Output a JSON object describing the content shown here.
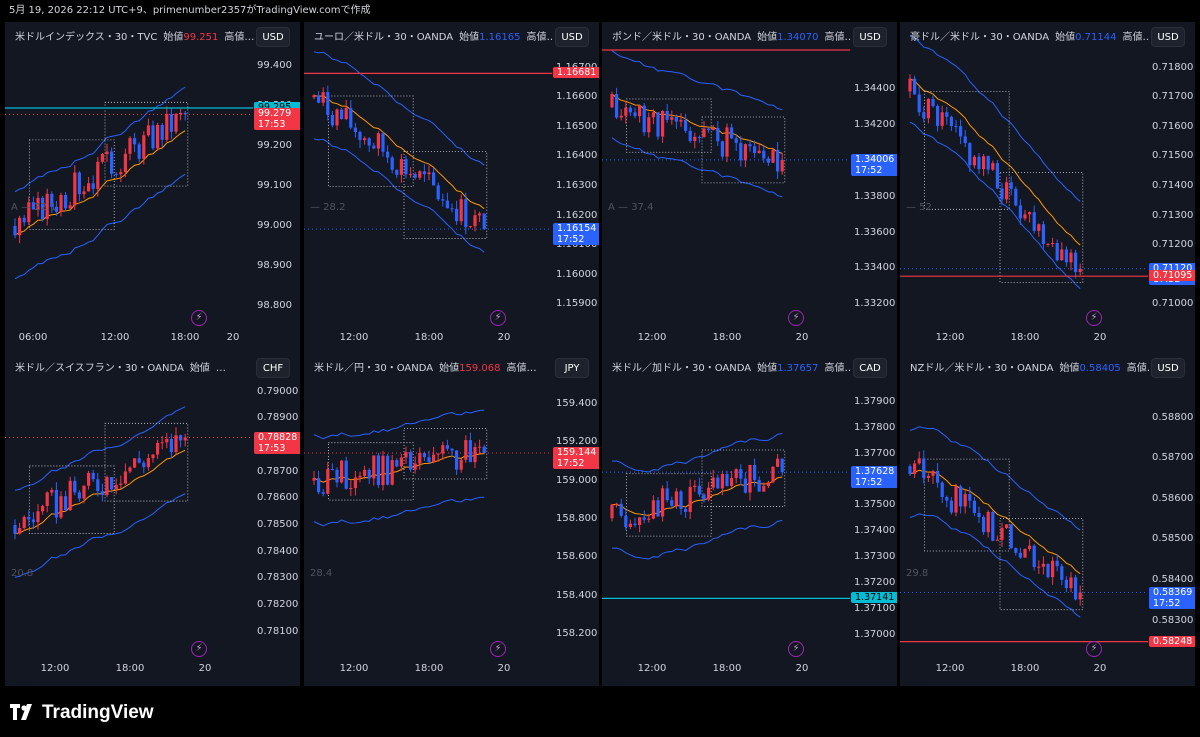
{
  "header": {
    "snapshot_text": "5月 19, 2026 22:12 UTC+9、primenumber2357がTradingView.comで作成"
  },
  "brand": {
    "name": "TradingView",
    "logo_icon": "tradingview-logo-icon"
  },
  "colors": {
    "up": "#f23645",
    "down": "#2962ff",
    "bg": "#131722",
    "ema": "#ff9800",
    "band": "#2962ff"
  },
  "panels": [
    {
      "title_symbol": "米ドルインデックス・30・TVC",
      "title_open_label": "始値",
      "title_open": "99.251",
      "title_open_color": "#f23645",
      "title_more": "高値…",
      "currency": "USD",
      "price_ticks": [
        "99.400",
        "99.300",
        "99.200",
        "99.100",
        "99.000",
        "98.900",
        "98.800"
      ],
      "time_ticks": [
        "06:00",
        "12:00",
        "18:00",
        "20"
      ],
      "indicator_label": "A — 22.1",
      "labels": [
        {
          "price": "99.295",
          "time": "",
          "color": "#00bcd4",
          "text_color": "#000"
        },
        {
          "price": "99.279",
          "time": "17:53",
          "color": "#f23645",
          "text_color": "#fff"
        }
      ],
      "chart_data": {
        "type": "candlestick",
        "ylim": [
          98.76,
          99.44
        ],
        "last": 99.279
      },
      "seed": 3,
      "start": 99.0,
      "end": 99.279,
      "trend": "up",
      "lines": [
        {
          "price": 99.295,
          "color": "#00bcd4",
          "style": "solid"
        },
        {
          "price": 99.279,
          "color": "#f23645",
          "style": "dotted"
        }
      ]
    },
    {
      "title_symbol": "ユーロ／米ドル・30・OANDA",
      "title_open_label": "始値",
      "title_open": "1.16165",
      "title_open_color": "#2962ff",
      "title_more": "高値…",
      "currency": "USD",
      "price_ticks": [
        "1.16700",
        "1.16600",
        "1.16500",
        "1.16400",
        "1.16300",
        "1.16200",
        "1.16100",
        "1.16000",
        "1.15900"
      ],
      "time_ticks": [
        "12:00",
        "18:00",
        "20"
      ],
      "indicator_label": "— 28.2",
      "labels": [
        {
          "price": "1.16681",
          "time": "",
          "color": "#f23645",
          "text_color": "#fff"
        },
        {
          "price": "1.16154",
          "time": "17:52",
          "color": "#2962ff",
          "text_color": "#fff"
        }
      ],
      "chart_data": {
        "type": "candlestick",
        "ylim": [
          1.1584,
          1.1676
        ],
        "last": 1.16154
      },
      "seed": 7,
      "start": 1.166,
      "end": 1.16154,
      "trend": "down",
      "lines": [
        {
          "price": 1.16681,
          "color": "#f23645",
          "style": "solid"
        },
        {
          "price": 1.16154,
          "color": "#2962ff",
          "style": "dotted"
        }
      ]
    },
    {
      "title_symbol": "ポンド／米ドル・30・OANDA",
      "title_open_label": "始値",
      "title_open": "1.34070",
      "title_open_color": "#2962ff",
      "title_more": "高値…",
      "currency": "USD",
      "price_ticks": [
        "1.34400",
        "1.34200",
        "1.34000",
        "1.33800",
        "1.33600",
        "1.33400",
        "1.33200"
      ],
      "time_ticks": [
        "12:00",
        "18:00",
        "20"
      ],
      "indicator_label": "A — 37.4",
      "labels": [
        {
          "price": "1.34006",
          "time": "17:52",
          "color": "#2962ff",
          "text_color": "#fff"
        }
      ],
      "chart_data": {
        "type": "candlestick",
        "ylim": [
          1.331,
          1.3462
        ],
        "last": 1.34006
      },
      "seed": 11,
      "start": 1.343,
      "end": 1.34006,
      "trend": "flat",
      "lines": [
        {
          "price": 1.3462,
          "color": "#f23645",
          "style": "solid"
        },
        {
          "price": 1.34006,
          "color": "#2962ff",
          "style": "dotted"
        }
      ]
    },
    {
      "title_symbol": "豪ドル／米ドル・30・OANDA",
      "title_open_label": "始値",
      "title_open": "0.71144",
      "title_open_color": "#2962ff",
      "title_more": "高値…",
      "currency": "USD",
      "price_ticks": [
        "0.71800",
        "0.71700",
        "0.71600",
        "0.71500",
        "0.71400",
        "0.71300",
        "0.71200",
        "0.71100",
        "0.71000"
      ],
      "time_ticks": [
        "12:00",
        "18:00",
        "20"
      ],
      "indicator_label": "— 52",
      "labels": [
        {
          "price": "0.71120",
          "time": "17:52",
          "color": "#2962ff",
          "text_color": "#fff"
        },
        {
          "price": "0.71095",
          "time": "",
          "color": "#f23645",
          "text_color": "#fff"
        }
      ],
      "chart_data": {
        "type": "candlestick",
        "ylim": [
          0.7094,
          0.7186
        ],
        "last": 0.7112
      },
      "seed": 5,
      "start": 0.7172,
      "end": 0.7112,
      "trend": "down",
      "lines": [
        {
          "price": 0.71095,
          "color": "#f23645",
          "style": "solid"
        },
        {
          "price": 0.7112,
          "color": "#2962ff",
          "style": "dotted"
        }
      ]
    },
    {
      "title_symbol": "米ドル／スイスフラン・30・OANDA",
      "title_open_label": "始値",
      "title_open": "",
      "title_open_color": "#d1d4dc",
      "title_more": "…",
      "currency": "CHF",
      "price_ticks": [
        "0.79000",
        "0.78900",
        "0.78800",
        "0.78700",
        "0.78600",
        "0.78500",
        "0.78400",
        "0.78300",
        "0.78200",
        "0.78100"
      ],
      "time_ticks": [
        "12:00",
        "18:00",
        "20"
      ],
      "indicator_label": "20.8",
      "labels": [
        {
          "price": "0.78828",
          "time": "17:53",
          "color": "#f23645",
          "text_color": "#fff"
        }
      ],
      "chart_data": {
        "type": "candlestick",
        "ylim": [
          0.7802,
          0.7904
        ],
        "last": 0.78828
      },
      "seed": 9,
      "start": 0.785,
      "end": 0.78828,
      "trend": "up",
      "lines": [
        {
          "price": 0.78828,
          "color": "#f23645",
          "style": "dotted"
        }
      ]
    },
    {
      "title_symbol": "米ドル／円・30・OANDA",
      "title_open_label": "始値",
      "title_open": "159.068",
      "title_open_color": "#f23645",
      "title_more": "高値…",
      "currency": "JPY",
      "price_ticks": [
        "159.400",
        "159.200",
        "159.000",
        "158.800",
        "158.600",
        "158.400",
        "158.200"
      ],
      "time_ticks": [
        "12:00",
        "18:00",
        "20"
      ],
      "indicator_label": "28.4",
      "labels": [
        {
          "price": "159.144",
          "time": "17:52",
          "color": "#f23645",
          "text_color": "#fff"
        }
      ],
      "chart_data": {
        "type": "candlestick",
        "ylim": [
          158.1,
          159.52
        ],
        "last": 159.144
      },
      "seed": 13,
      "start": 159.0,
      "end": 159.144,
      "trend": "up-slight",
      "lines": [
        {
          "price": 159.144,
          "color": "#f23645",
          "style": "dotted"
        }
      ]
    },
    {
      "title_symbol": "米ドル／加ドル・30・OANDA",
      "title_open_label": "始値",
      "title_open": "1.37657",
      "title_open_color": "#2962ff",
      "title_more": "高値…",
      "currency": "CAD",
      "price_ticks": [
        "1.37900",
        "1.37800",
        "1.37700",
        "1.37600",
        "1.37500",
        "1.37400",
        "1.37300",
        "1.37200",
        "1.37100",
        "1.37000"
      ],
      "time_ticks": [
        "12:00",
        "18:00",
        "20"
      ],
      "indicator_label": "",
      "labels": [
        {
          "price": "1.37628",
          "time": "17:52",
          "color": "#2962ff",
          "text_color": "#fff"
        },
        {
          "price": "1.37141",
          "time": "",
          "color": "#00bcd4",
          "text_color": "#000"
        }
      ],
      "chart_data": {
        "type": "candlestick",
        "ylim": [
          1.3693,
          1.3798
        ],
        "last": 1.37628
      },
      "seed": 17,
      "start": 1.3745,
      "end": 1.37628,
      "trend": "up",
      "lines": [
        {
          "price": 1.37141,
          "color": "#00bcd4",
          "style": "solid"
        },
        {
          "price": 1.37628,
          "color": "#2962ff",
          "style": "dotted"
        }
      ]
    },
    {
      "title_symbol": "NZドル／米ドル・30・OANDA",
      "title_open_label": "始値",
      "title_open": "0.58405",
      "title_open_color": "#2962ff",
      "title_more": "高値…",
      "currency": "USD",
      "price_ticks": [
        "0.58800",
        "0.58700",
        "0.58600",
        "0.58500",
        "0.58400",
        "0.58300"
      ],
      "time_ticks": [
        "12:00",
        "18:00",
        "20"
      ],
      "indicator_label": "29.8",
      "labels": [
        {
          "price": "0.58369",
          "time": "17:52",
          "color": "#2962ff",
          "text_color": "#fff"
        },
        {
          "price": "0.58248",
          "time": "",
          "color": "#f23645",
          "text_color": "#fff"
        }
      ],
      "chart_data": {
        "type": "candlestick",
        "ylim": [
          0.5822,
          0.5889
        ],
        "last": 0.58369
      },
      "seed": 21,
      "start": 0.5868,
      "end": 0.58369,
      "trend": "down",
      "lines": [
        {
          "price": 0.58248,
          "color": "#f23645",
          "style": "solid"
        },
        {
          "price": 0.58369,
          "color": "#2962ff",
          "style": "dotted"
        }
      ]
    }
  ]
}
